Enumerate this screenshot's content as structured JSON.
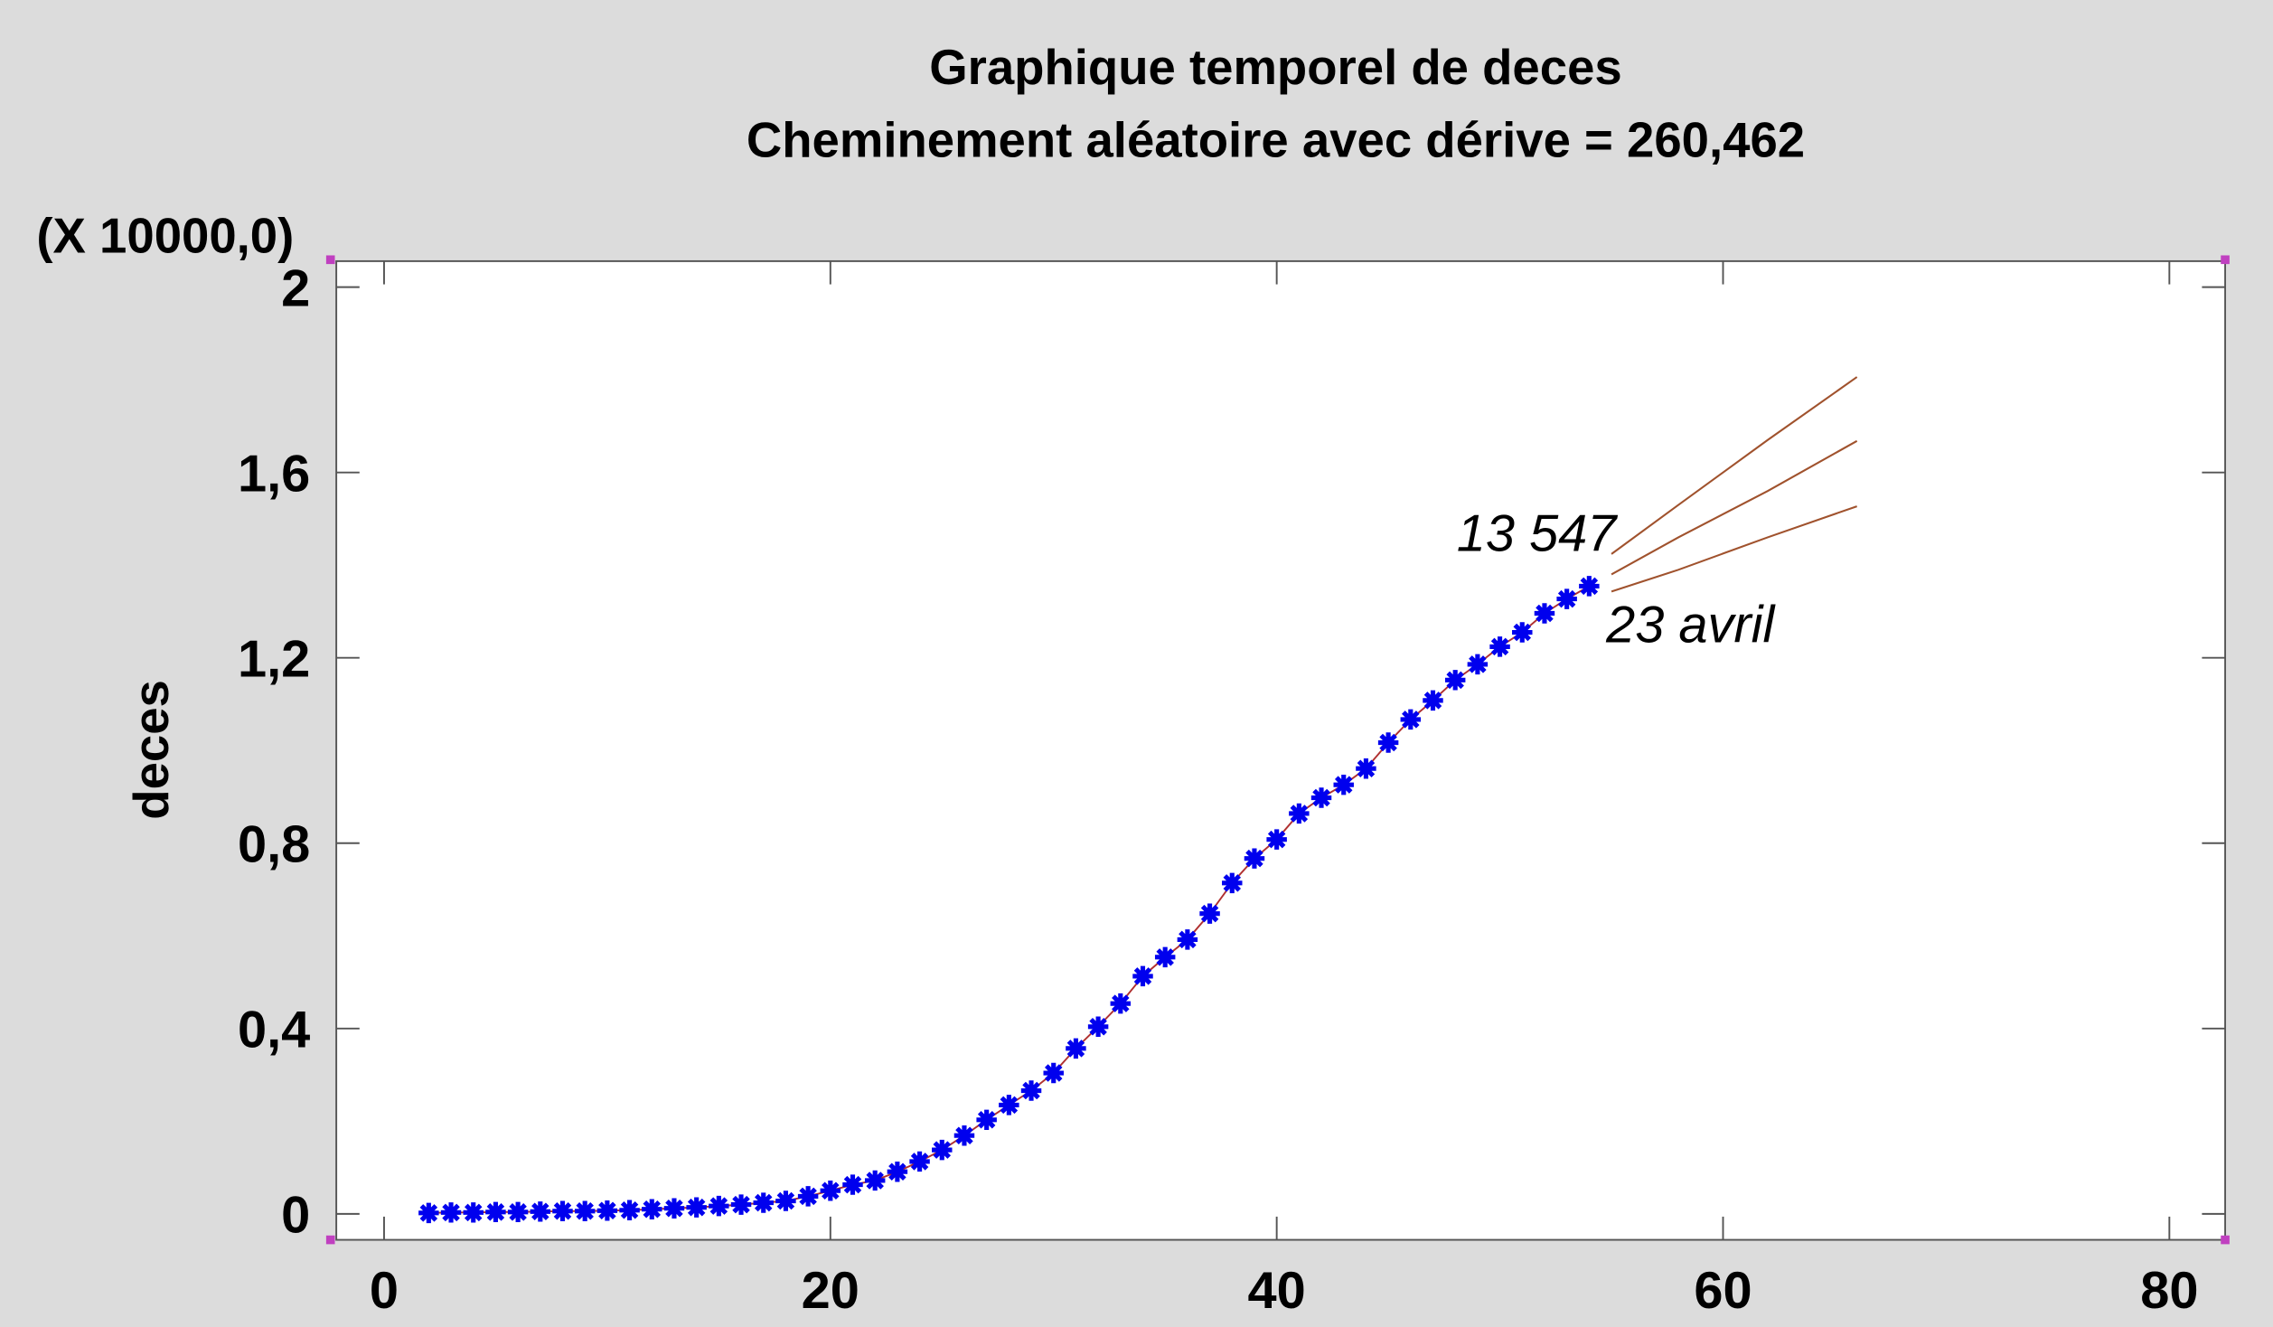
{
  "chart_data": {
    "type": "scatter",
    "title": "Graphique temporel de deces",
    "subtitle": "Cheminement aléatoire avec dérive = 260,462",
    "ylabel": "deces",
    "y_multiplier": "(X 10000,0)",
    "x": [
      2,
      3,
      4,
      5,
      6,
      7,
      8,
      9,
      10,
      11,
      12,
      13,
      14,
      15,
      16,
      17,
      18,
      19,
      20,
      21,
      22,
      23,
      24,
      25,
      26,
      27,
      28,
      29,
      30,
      31,
      32,
      33,
      34,
      35,
      36,
      37,
      38,
      39,
      40,
      41,
      42,
      43,
      44,
      45,
      46,
      47,
      48,
      49,
      50,
      51,
      52,
      53,
      54
    ],
    "series": [
      {
        "color": "#0000ee",
        "line_color": "#b03030",
        "values": [
          0.002,
          0.003,
          0.003,
          0.004,
          0.004,
          0.005,
          0.006,
          0.006,
          0.007,
          0.008,
          0.01,
          0.012,
          0.014,
          0.017,
          0.02,
          0.024,
          0.028,
          0.038,
          0.05,
          0.063,
          0.072,
          0.091,
          0.113,
          0.138,
          0.169,
          0.203,
          0.235,
          0.266,
          0.304,
          0.357,
          0.404,
          0.454,
          0.513,
          0.554,
          0.592,
          0.648,
          0.714,
          0.767,
          0.808,
          0.864,
          0.898,
          0.926,
          0.961,
          1.017,
          1.067,
          1.108,
          1.152,
          1.186,
          1.224,
          1.255,
          1.296,
          1.327,
          1.3547
        ]
      }
    ],
    "forecast": {
      "x": [
        55,
        58,
        62,
        66
      ],
      "color": "#a0522d",
      "series": [
        {
          "values": [
            1.424,
            1.53,
            1.67,
            1.806
          ]
        },
        {
          "values": [
            1.38,
            1.46,
            1.56,
            1.668
          ]
        },
        {
          "values": [
            1.343,
            1.39,
            1.46,
            1.527
          ]
        }
      ]
    },
    "annotations": [
      "13 547",
      "23 avril"
    ],
    "xlim": [
      -2.14,
      82.5
    ],
    "ylim": [
      -0.056,
      2.056
    ],
    "xticks": [
      0,
      20,
      40,
      60,
      80
    ],
    "yticks": [
      0,
      {
        "value": 0.4,
        "label": "0,4"
      },
      {
        "value": 0.8,
        "label": "0,8"
      },
      {
        "value": 1.2,
        "label": "1,2"
      },
      {
        "value": 1.6,
        "label": "1,6"
      },
      2
    ]
  }
}
